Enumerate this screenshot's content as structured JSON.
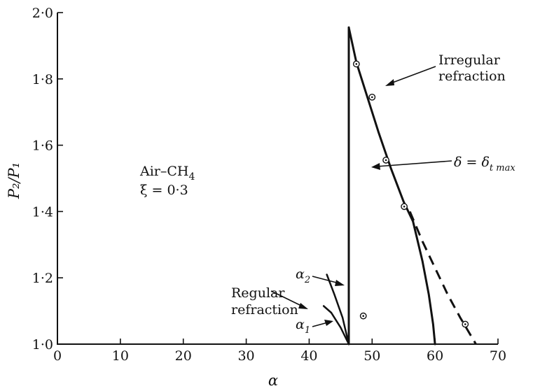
{
  "chart_data": {
    "type": "line",
    "xlabel": "α",
    "ylabel": "P₂/P₁",
    "xlim": [
      0,
      70
    ],
    "ylim": [
      1.0,
      2.0
    ],
    "x_ticks": [
      0,
      10,
      20,
      30,
      40,
      50,
      60,
      70
    ],
    "x_tick_labels": [
      "0",
      "10",
      "20",
      "30",
      "40",
      "50",
      "60",
      "70"
    ],
    "y_ticks": [
      1.0,
      1.2,
      1.4,
      1.6,
      1.8,
      2.0
    ],
    "y_tick_labels": [
      "1·0",
      "1·2",
      "1·4",
      "1·6",
      "1·8",
      "2·0"
    ],
    "grid": false,
    "series": [
      {
        "style": "solid",
        "x": [
          46.3,
          46.3
        ],
        "y": [
          1.0,
          1.955
        ]
      },
      {
        "style": "solid",
        "x": [
          46.3,
          47.5,
          49.0,
          51.0,
          53.0,
          55.0,
          56.5
        ],
        "y": [
          1.955,
          1.85,
          1.76,
          1.64,
          1.53,
          1.43,
          1.37
        ]
      },
      {
        "style": "solid",
        "x": [
          56.5,
          58.0,
          59.0,
          59.7,
          60.0
        ],
        "y": [
          1.37,
          1.25,
          1.15,
          1.06,
          1.0
        ]
      },
      {
        "style": "dashed",
        "x": [
          56.0,
          58.0,
          60.0,
          62.0,
          64.0,
          66.5
        ],
        "y": [
          1.4,
          1.31,
          1.23,
          1.15,
          1.08,
          1.0
        ]
      },
      {
        "style": "solid",
        "x": [
          42.8,
          44.0,
          45.3,
          46.3
        ],
        "y": [
          1.21,
          1.15,
          1.08,
          1.0
        ]
      },
      {
        "style": "solid",
        "x": [
          42.3,
          43.5,
          45.0,
          46.3
        ],
        "y": [
          1.115,
          1.095,
          1.05,
          1.0
        ]
      }
    ],
    "points": [
      {
        "x": 47.5,
        "y": 1.845
      },
      {
        "x": 50.0,
        "y": 1.745
      },
      {
        "x": 52.2,
        "y": 1.555
      },
      {
        "x": 55.1,
        "y": 1.415
      },
      {
        "x": 48.6,
        "y": 1.085
      },
      {
        "x": 64.8,
        "y": 1.06
      }
    ],
    "annotations": {
      "mixture": "Air–CH",
      "mixture_sub": "4",
      "xi": "ξ = 0·3",
      "irregular_line1": "Irregular",
      "irregular_line2": "refraction",
      "delta_lhs": "δ = δ",
      "delta_sub": "t max",
      "regular_line1": "Regular",
      "regular_line2": "refraction",
      "alpha2": "α",
      "alpha2_sub": "2",
      "alpha1": "α",
      "alpha1_sub": "1"
    }
  }
}
